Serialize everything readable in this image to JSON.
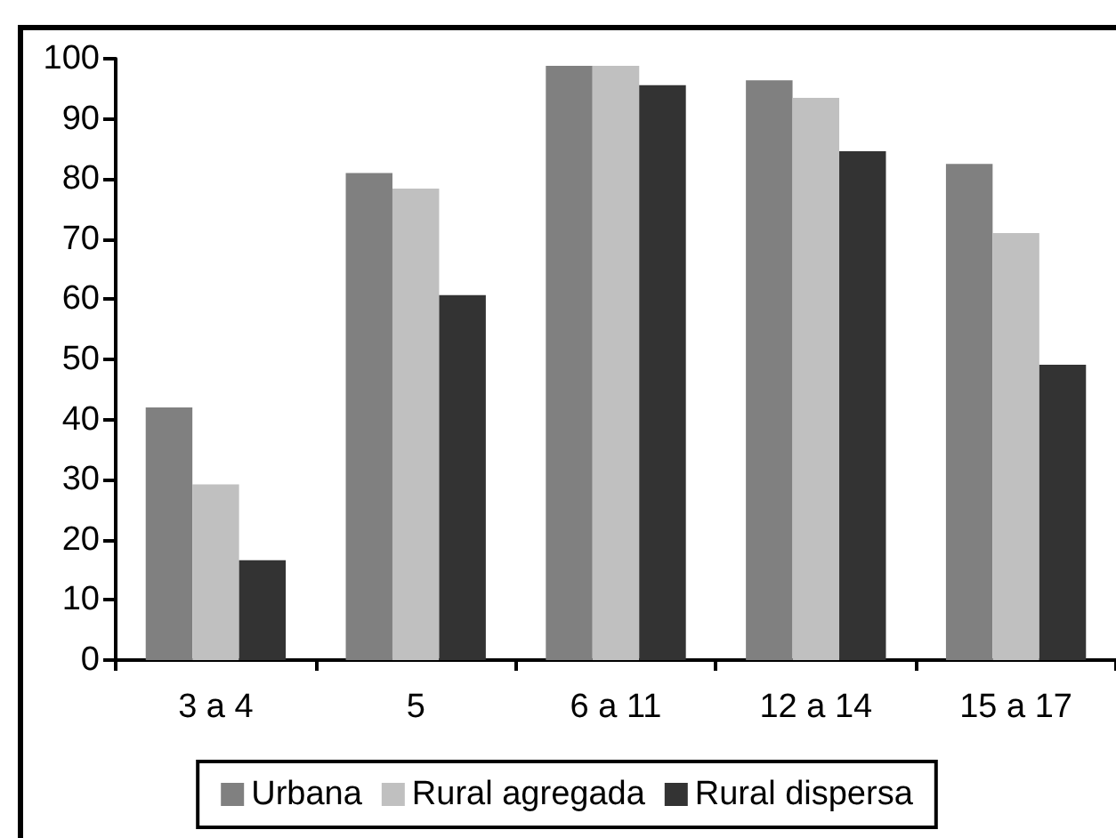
{
  "chart_data": {
    "type": "bar",
    "categories": [
      "3 a 4",
      "5",
      "6 a 11",
      "12 a 14",
      "15 a 17"
    ],
    "series": [
      {
        "name": "Urbana",
        "color": "#808080",
        "values": [
          42,
          81,
          98.8,
          96.4,
          82.5
        ]
      },
      {
        "name": "Rural agregada",
        "color": "#c0c0c0",
        "values": [
          29.2,
          78.4,
          98.8,
          93.5,
          71
        ]
      },
      {
        "name": "Rural dispersa",
        "color": "#333333",
        "values": [
          16.6,
          60.7,
          95.6,
          84.6,
          49.1
        ]
      }
    ],
    "ylim": [
      0,
      100
    ],
    "yticks": [
      0,
      10,
      20,
      30,
      40,
      50,
      60,
      70,
      80,
      90,
      100
    ],
    "legend": "bottom"
  }
}
